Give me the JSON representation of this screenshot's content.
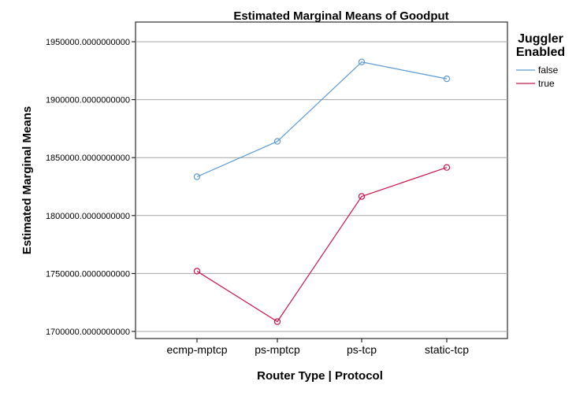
{
  "chart_data": {
    "type": "line",
    "title": "Estimated Marginal Means of Goodput",
    "xlabel": "Router Type | Protocol",
    "ylabel": "Estimated Marginal Means",
    "categories": [
      "ecmp-mptcp",
      "ps-mptcp",
      "ps-tcp",
      "static-tcp"
    ],
    "ylim": [
      1690000,
      1970000
    ],
    "yticks": [
      1700000,
      1750000,
      1800000,
      1850000,
      1900000,
      1950000
    ],
    "ytick_labels": [
      "1700000.0000000000",
      "1750000.0000000000",
      "1800000.0000000000",
      "1850000.0000000000",
      "1900000.0000000000",
      "1950000.0000000000"
    ],
    "grid": "horizontal",
    "legend_title_lines": [
      "Juggler",
      "Enabled"
    ],
    "legend_position": "top-right",
    "series": [
      {
        "name": "false",
        "color": "#5b9bd5",
        "values": [
          1833500,
          1864000,
          1932500,
          1918000
        ]
      },
      {
        "name": "true",
        "color": "#c8174a",
        "values": [
          1752000,
          1708500,
          1816500,
          1841500
        ]
      }
    ]
  }
}
